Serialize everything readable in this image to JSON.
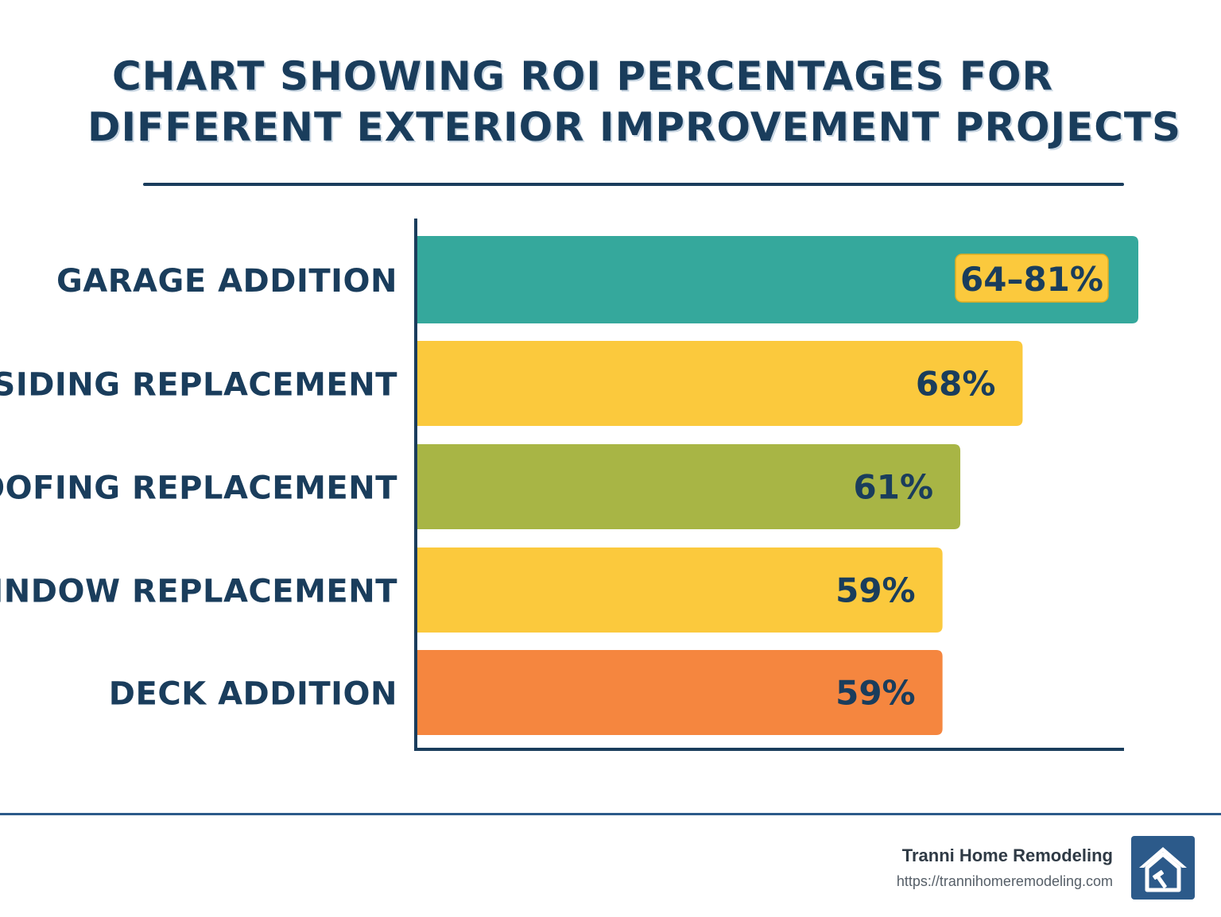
{
  "title_lines": [
    "CHART SHOWING ROI PERCENTAGES FOR",
    "DIFFERENT EXTERIOR IMPROVEMENT PROJECTS"
  ],
  "chart_data": {
    "type": "bar",
    "orientation": "horizontal",
    "title": "CHART SHOWING ROI PERCENTAGES FOR DIFFERENT EXTERIOR IMPROVEMENT PROJECTS",
    "xlabel": "",
    "ylabel": "",
    "grid": false,
    "categories": [
      "GARAGE ADDITION",
      "SIDING REPLACEMENT",
      "ROOFING REPLACEMENT",
      "WINDOW REPLACEMENT",
      "DECK ADDITION"
    ],
    "values": [
      81,
      68,
      61,
      59,
      59
    ],
    "value_ranges": [
      [
        64,
        81
      ],
      null,
      null,
      null,
      null
    ],
    "data_labels": [
      "64–81%",
      "68%",
      "61%",
      "59%",
      "59%"
    ],
    "colors": [
      "#35a89c",
      "#fbc93d",
      "#a8b545",
      "#fbc93d",
      "#f5863f"
    ],
    "label_badge_color": "#fbc93d"
  },
  "footer": {
    "brand": "Tranni Home Remodeling",
    "url": "https://trannihomeremodeling.com",
    "logo_icon": "house-hammer-icon",
    "logo_color": "#2c5a8a"
  }
}
